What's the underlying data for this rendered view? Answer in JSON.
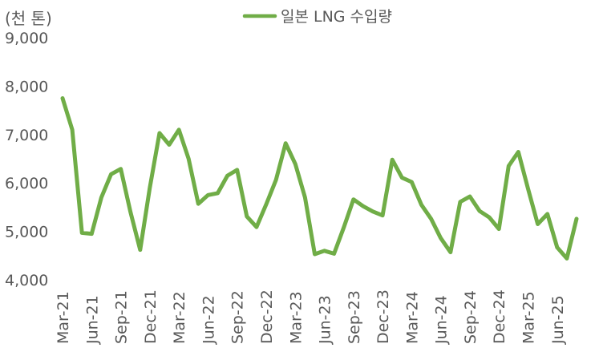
{
  "chart_data": {
    "type": "line",
    "unit_label": "(천 톤)",
    "series": [
      {
        "name": "일본 LNG 수입량",
        "color": "#70AD47",
        "values": [
          7750,
          7100,
          4970,
          4950,
          5700,
          6180,
          6290,
          5400,
          4620,
          5900,
          7030,
          6790,
          7100,
          6500,
          5570,
          5750,
          5790,
          6150,
          6270,
          5310,
          5090,
          5560,
          6060,
          6820,
          6390,
          5700,
          4530,
          4600,
          4540,
          5080,
          5660,
          5520,
          5410,
          5330,
          6480,
          6110,
          6020,
          5550,
          5260,
          4860,
          4570,
          5610,
          5720,
          5420,
          5290,
          5050,
          6350,
          6640,
          5880,
          5150,
          5360,
          4670,
          4440,
          5260
        ]
      }
    ],
    "x_tick_labels": [
      "Mar-21",
      "Jun-21",
      "Sep-21",
      "Dec-21",
      "Mar-22",
      "Jun-22",
      "Sep-22",
      "Dec-22",
      "Mar-23",
      "Jun-23",
      "Sep-23",
      "Dec-23",
      "Mar-24",
      "Jun-24",
      "Sep-24",
      "Dec-24",
      "Mar-25",
      "Jun-25"
    ],
    "x_tick_every": 3,
    "y_tick_labels": [
      "4,000",
      "5,000",
      "6,000",
      "7,000",
      "8,000",
      "9,000"
    ],
    "ylim": [
      4000,
      9000
    ],
    "y_ticks": [
      4000,
      5000,
      6000,
      7000,
      8000,
      9000
    ],
    "grid": false,
    "legend_position": "top-center"
  }
}
